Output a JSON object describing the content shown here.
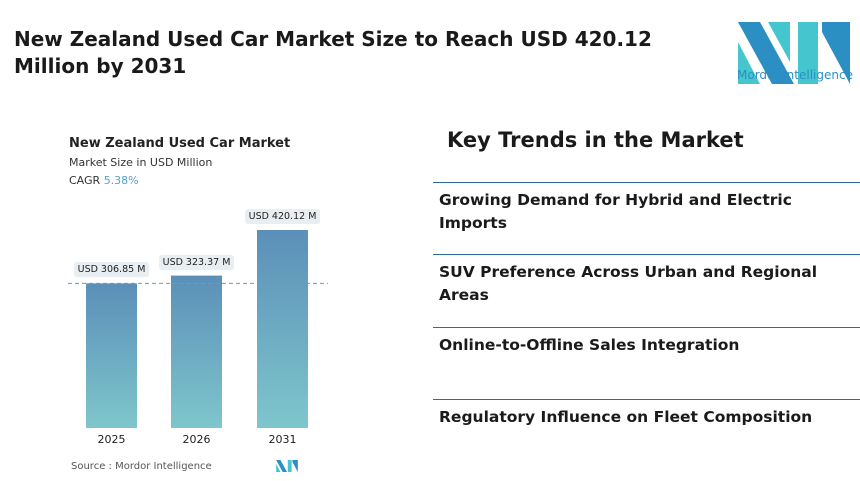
{
  "title": "New Zealand Used Car Market Size to Reach USD 420.12 Million by 2031",
  "logo": {
    "text": "Mordor Intelligence",
    "colors": [
      "#2b8fc4",
      "#45c6cf"
    ]
  },
  "chart_data": {
    "type": "bar",
    "title": "New Zealand Used Car Market",
    "subtitle": "Market Size in USD Million",
    "cagr_label": "CAGR",
    "cagr_value": "5.38%",
    "categories": [
      "2025",
      "2026",
      "2031"
    ],
    "values": [
      306.85,
      323.37,
      420.12
    ],
    "data_labels": [
      "USD 306.85 M",
      "USD 323.37 M",
      "USD 420.12 M"
    ],
    "ylim": [
      0,
      420.12
    ],
    "reference_line": 306.85,
    "bar_color_top": "#5b8fb8",
    "bar_color_bottom": "#7ec6cc"
  },
  "source": "Source :  Mordor Intelligence",
  "key_trends": {
    "heading": "Key Trends in the Market",
    "items": [
      "Growing Demand for Hybrid and Electric Imports",
      "SUV Preference Across Urban and Regional Areas",
      "Online-to-Offline Sales Integration",
      "Regulatory Influence on Fleet Composition"
    ]
  }
}
